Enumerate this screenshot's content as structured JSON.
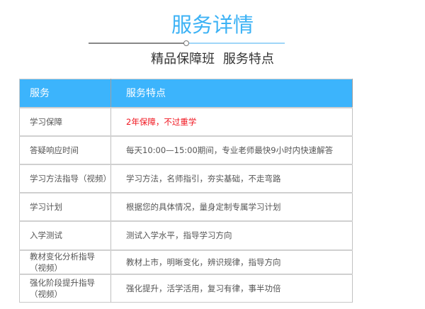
{
  "title": "服务详情",
  "subtitle": "精品保障班  服务特点",
  "accent_color": "#3cb4fc",
  "table": {
    "headers": [
      "服务",
      "服务特点"
    ],
    "rows": [
      {
        "service": "学习保障",
        "feature": "2年保障，不过重学",
        "highlight": true
      },
      {
        "service": "答疑响应时间",
        "feature": "每天10:00—15:00期间，专业老师最快9小时内快速解答"
      },
      {
        "service": "学习方法指导（视频）",
        "feature": "学习方法，名师指引，夯实基础，不走弯路"
      },
      {
        "service": "学习计划",
        "feature": "根据您的具体情况，量身定制专属学习计划"
      },
      {
        "service": "入学测试",
        "feature": "测试入学水平，指导学习方向"
      },
      {
        "service": "教材变化分析指导（视频）",
        "feature": "教材上市，明晰变化，辨识规律，指导方向"
      },
      {
        "service": "强化阶段提升指导（视频）",
        "feature": "强化提升，活学活用，复习有律，事半功倍"
      }
    ]
  }
}
